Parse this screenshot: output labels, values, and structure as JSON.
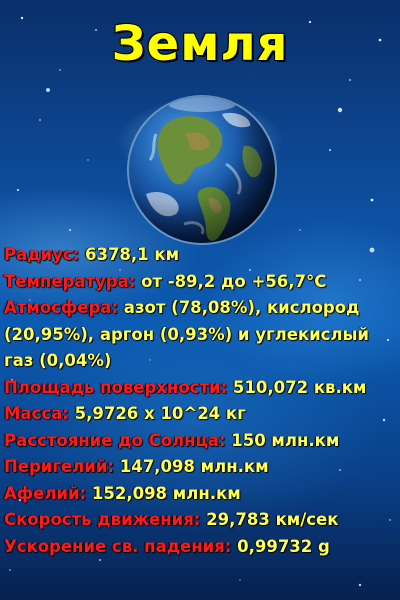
{
  "title": "Земля",
  "colors": {
    "title": "#ffff00",
    "label": "#ff1a1a",
    "value": "#ffff55",
    "background": "#0e4fa0"
  },
  "planet_image": "earth-globe-picture",
  "facts": [
    {
      "label": "Радиус:",
      "value": " 6378,1 км"
    },
    {
      "label": "Температура:",
      "value": " от -89,2 до +56,7°C"
    },
    {
      "label": "Атмосфера:",
      "value": " азот (78,08%), кислород (20,95%), аргон (0,93%) и углекислый газ (0,04%)"
    },
    {
      "label": "Площадь поверхности:",
      "value": " 510,072 кв.км"
    },
    {
      "label": "Масса:",
      "value": " 5,9726 х 10^24 кг"
    },
    {
      "label": "Расстояние до Солнца:",
      "value": " 150 млн.км"
    },
    {
      "label": "Перигелий:",
      "value": " 147,098 млн.км"
    },
    {
      "label": "Афелий:",
      "value": " 152,098 млн.км"
    },
    {
      "label": "Скорость движения:",
      "value": " 29,783 км/сек"
    },
    {
      "label": "Ускорение св. падения:",
      "value": " 0,99732 g"
    }
  ]
}
